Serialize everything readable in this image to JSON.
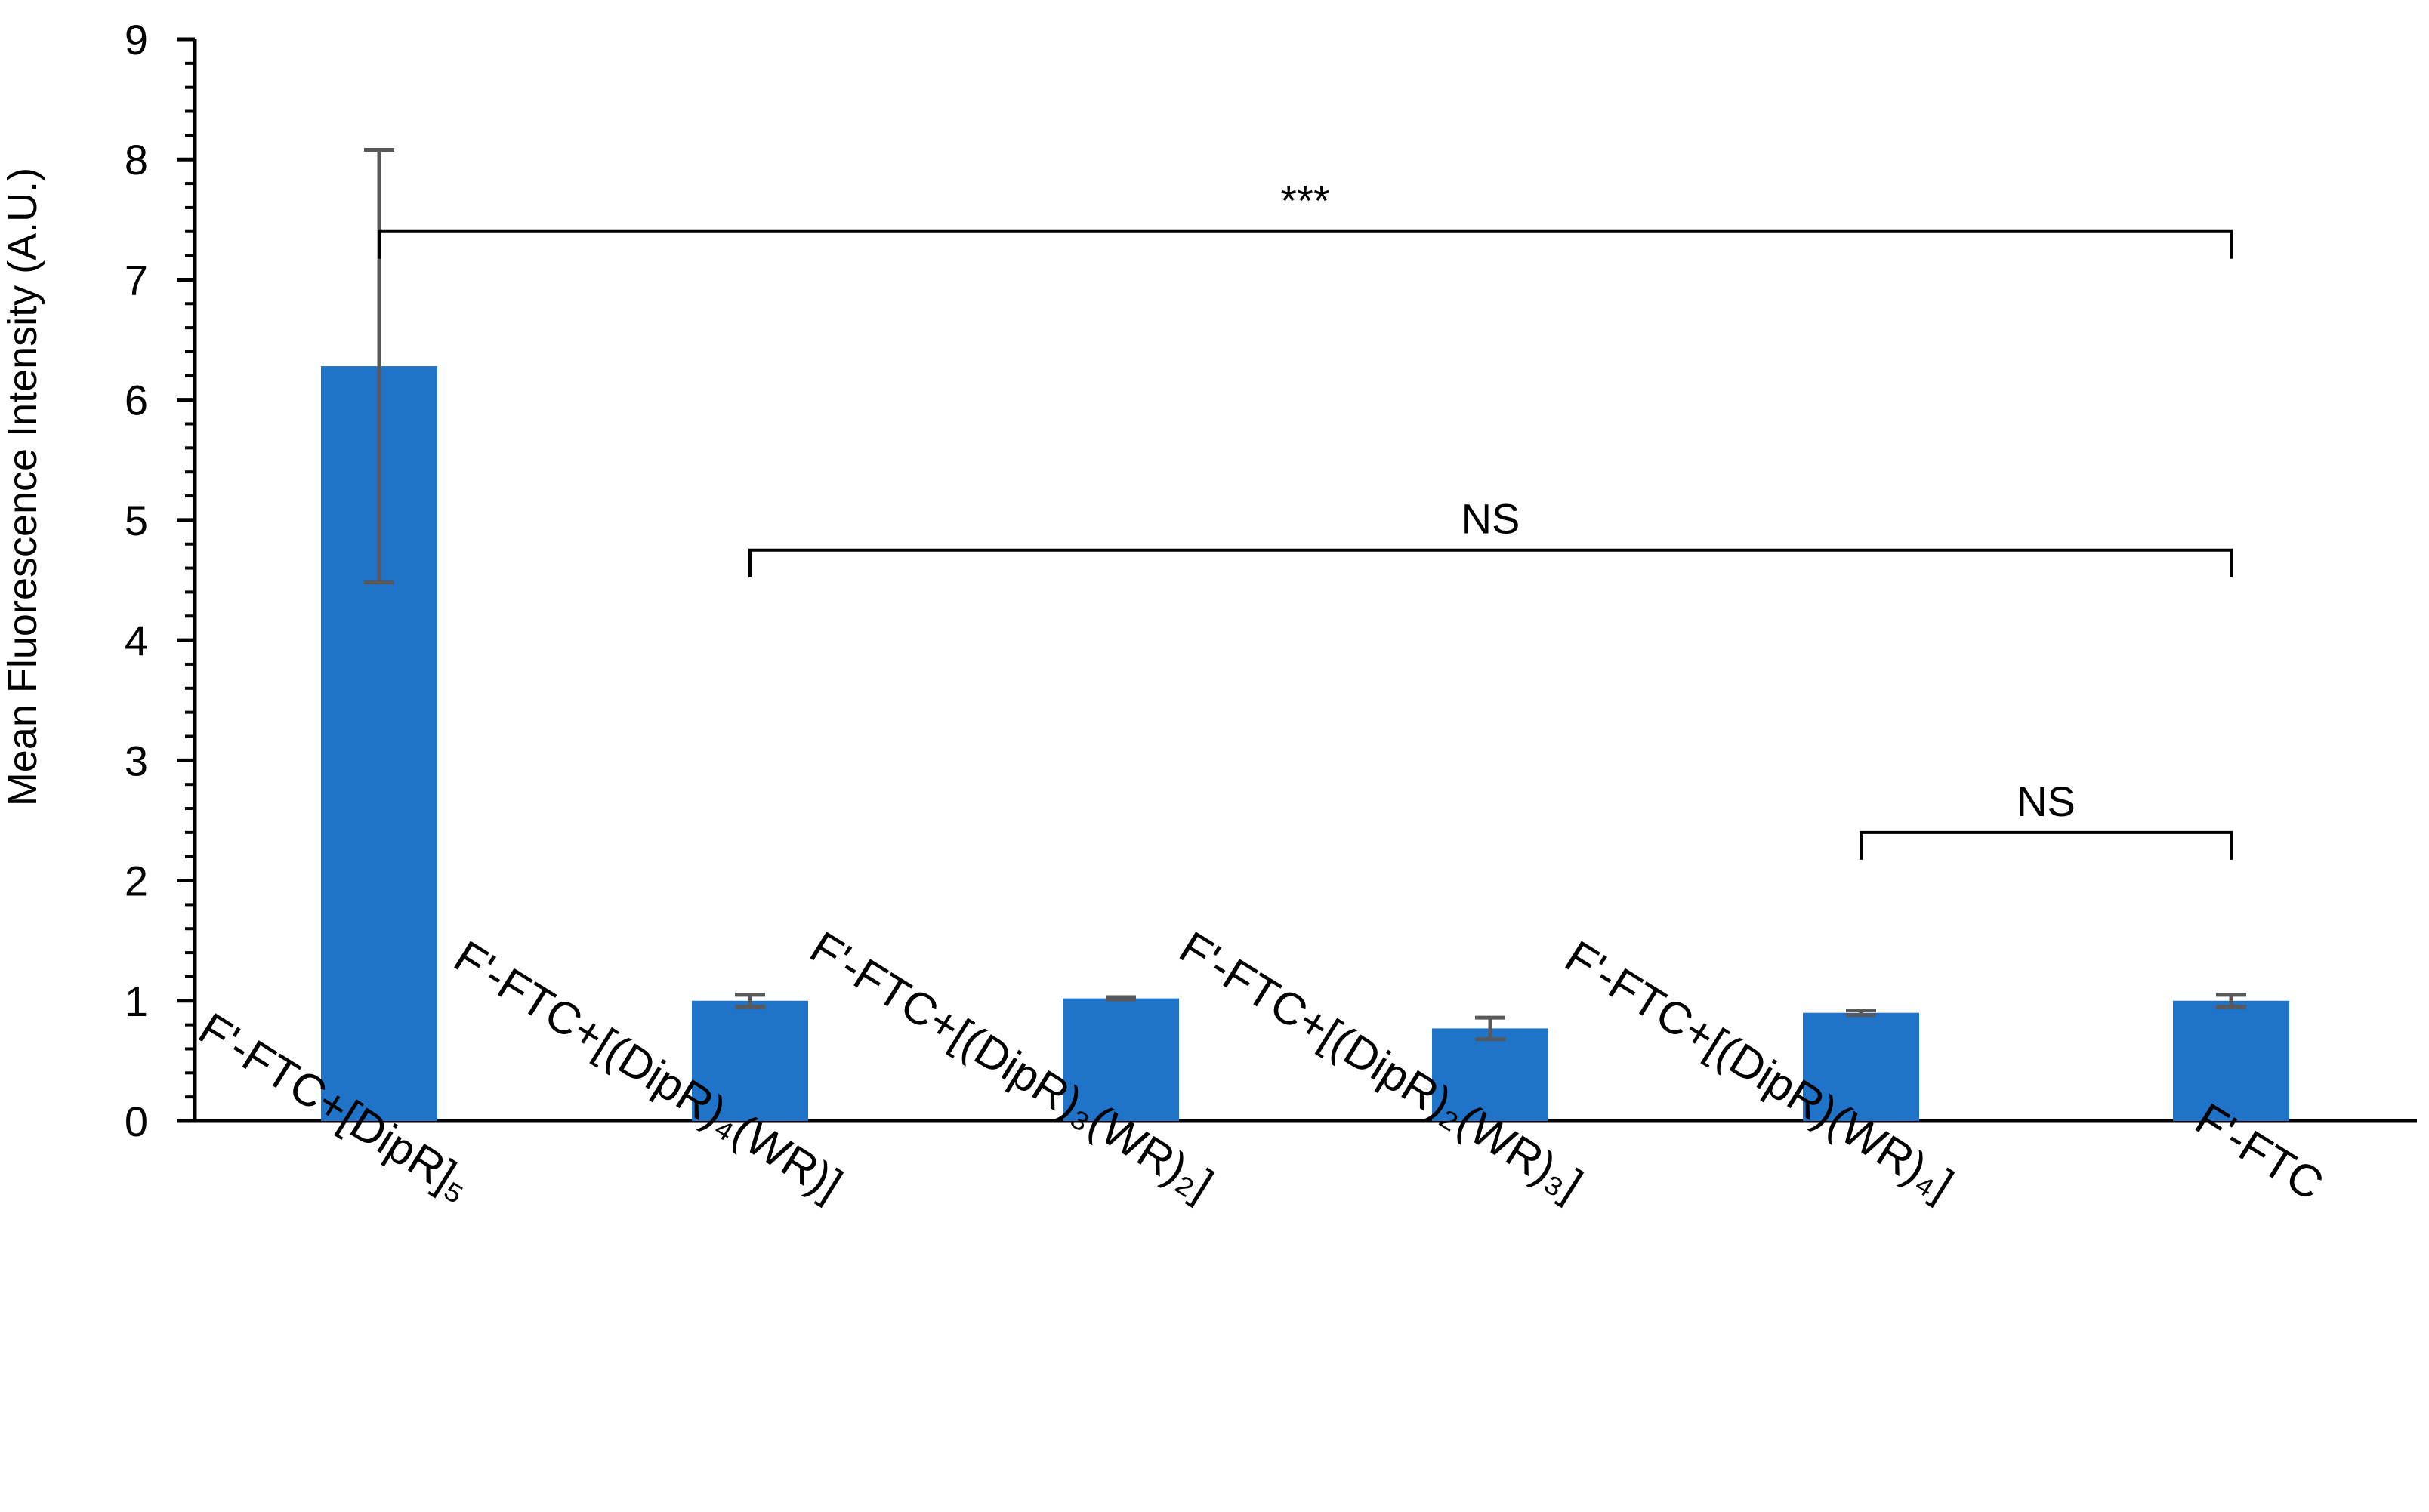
{
  "chart_data": {
    "type": "bar",
    "title": "",
    "xlabel": "",
    "ylabel": "Mean Fluorescence Intensity (A.U.)",
    "ylim": [
      0,
      9
    ],
    "yticks": [
      0,
      1,
      2,
      3,
      4,
      5,
      6,
      7,
      8,
      9
    ],
    "grid": false,
    "legend": "none",
    "categories": [
      "F'-FTC+[DipR]₅",
      "F'-FTC+[(DipR)₄(WR)]",
      "F'-FTC+[(DipR)₃(WR)₂]",
      "F'-FTC+[(DipR)₂(WR)₃]",
      "F'-FTC+[(DipR)(WR)₄]",
      "F'-FTC"
    ],
    "values": [
      6.28,
      1.0,
      1.02,
      0.77,
      0.9,
      1.0
    ],
    "errors": [
      1.8,
      0.05,
      0.01,
      0.09,
      0.02,
      0.05
    ],
    "bar_color": "#1f73c9",
    "error_color": "#595959",
    "significance": [
      {
        "from": 0,
        "to": 5,
        "label": "***",
        "y": 7.4
      },
      {
        "from": 1,
        "to": 5,
        "label": "NS",
        "y": 4.75
      },
      {
        "from": 4,
        "to": 5,
        "label": "NS",
        "y": 2.4
      }
    ]
  }
}
